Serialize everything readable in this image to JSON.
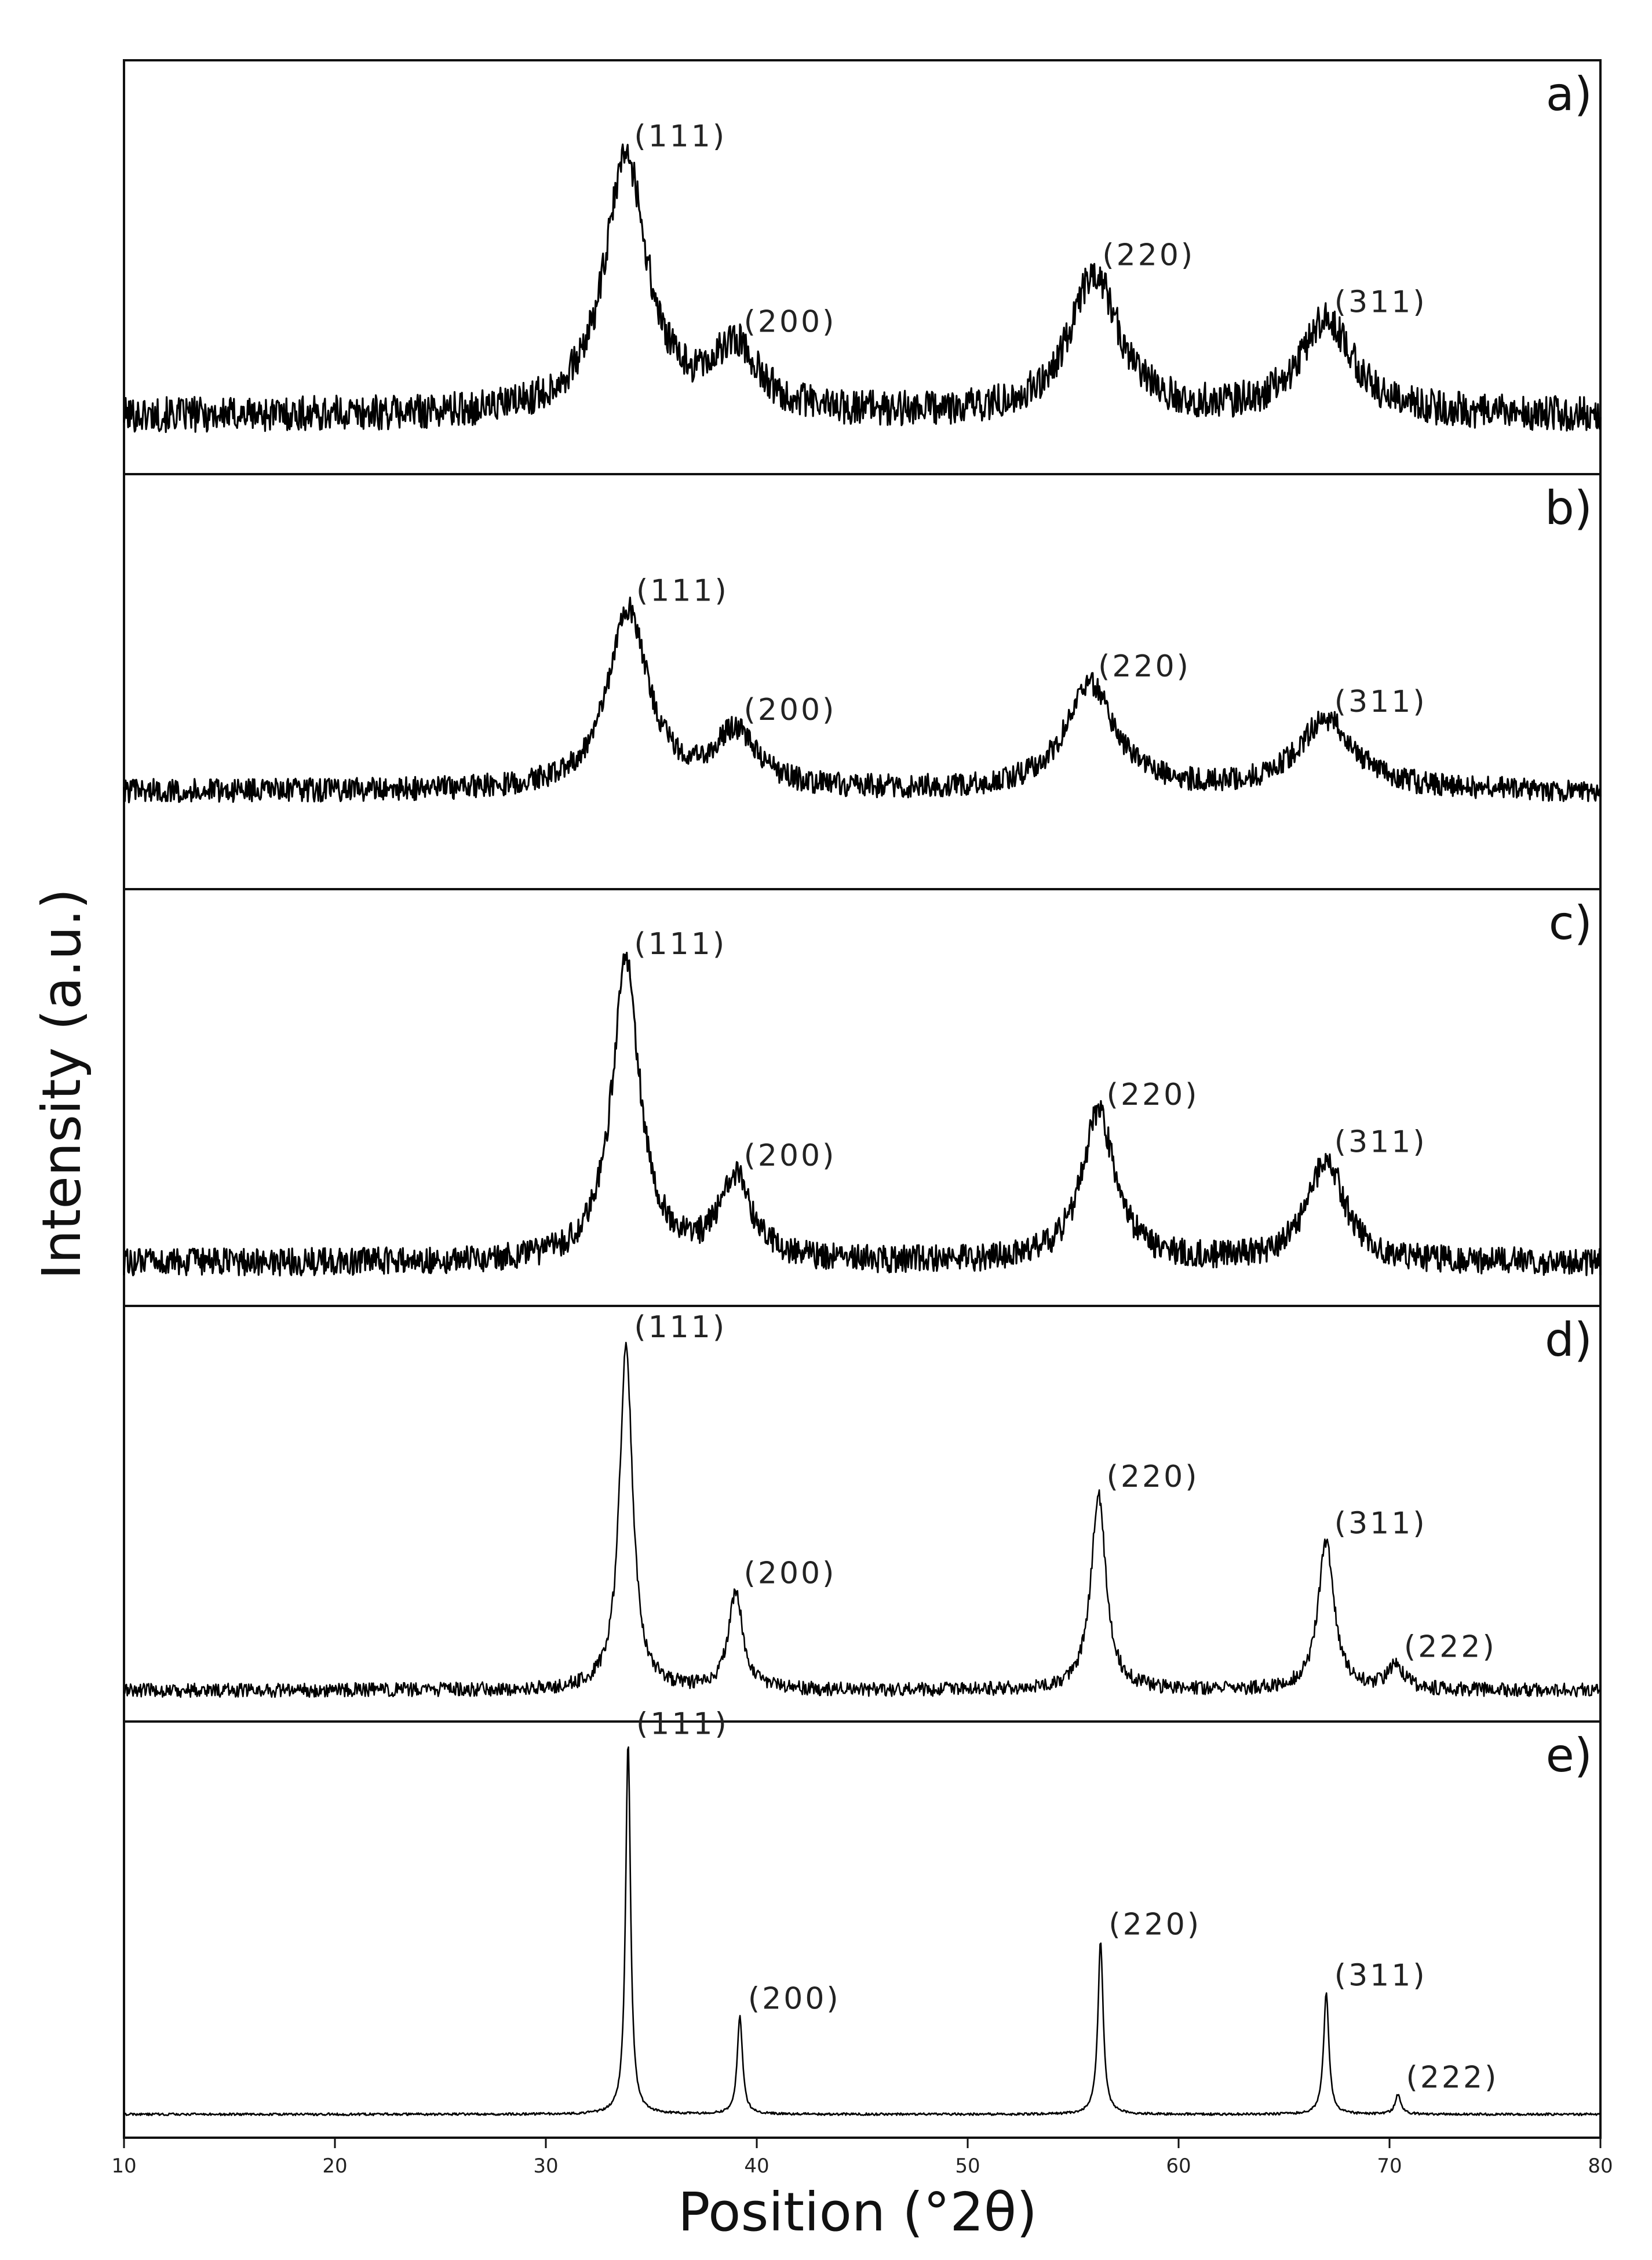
{
  "chart_data": {
    "type": "line",
    "xlabel": "Position (°2θ)",
    "ylabel": "Intensity (a.u.)",
    "xlim": [
      10,
      80
    ],
    "xticks": [
      10,
      20,
      30,
      40,
      50,
      60,
      70,
      80
    ],
    "grid": false,
    "panels": [
      {
        "id": "a",
        "letter": "a)",
        "baseline": 0.12,
        "noise": 0.045,
        "peaks": [
          {
            "hkl": "(111)",
            "center": 33.8,
            "height": 0.66,
            "width": 2.4
          },
          {
            "hkl": "(200)",
            "center": 39.0,
            "height": 0.16,
            "width": 2.6
          },
          {
            "hkl": "(220)",
            "center": 56.0,
            "height": 0.36,
            "width": 2.8
          },
          {
            "hkl": "(311)",
            "center": 67.0,
            "height": 0.24,
            "width": 3.0
          }
        ]
      },
      {
        "id": "b",
        "letter": "b)",
        "baseline": 0.22,
        "noise": 0.03,
        "peaks": [
          {
            "hkl": "(111)",
            "center": 33.9,
            "height": 0.46,
            "width": 2.3
          },
          {
            "hkl": "(200)",
            "center": 39.0,
            "height": 0.14,
            "width": 2.4
          },
          {
            "hkl": "(220)",
            "center": 55.8,
            "height": 0.27,
            "width": 2.8
          },
          {
            "hkl": "(311)",
            "center": 67.0,
            "height": 0.18,
            "width": 3.2
          }
        ]
      },
      {
        "id": "c",
        "letter": "c)",
        "baseline": 0.08,
        "noise": 0.035,
        "peaks": [
          {
            "hkl": "(111)",
            "center": 33.8,
            "height": 0.76,
            "width": 1.6
          },
          {
            "hkl": "(200)",
            "center": 39.0,
            "height": 0.21,
            "width": 1.8
          },
          {
            "hkl": "(220)",
            "center": 56.2,
            "height": 0.38,
            "width": 1.9
          },
          {
            "hkl": "(311)",
            "center": 67.0,
            "height": 0.26,
            "width": 2.1
          }
        ]
      },
      {
        "id": "d",
        "letter": "d)",
        "baseline": 0.05,
        "noise": 0.018,
        "peaks": [
          {
            "hkl": "(111)",
            "center": 33.8,
            "height": 0.88,
            "width": 0.75
          },
          {
            "hkl": "(200)",
            "center": 39.0,
            "height": 0.25,
            "width": 0.8
          },
          {
            "hkl": "(220)",
            "center": 56.2,
            "height": 0.5,
            "width": 0.85
          },
          {
            "hkl": "(311)",
            "center": 67.0,
            "height": 0.38,
            "width": 0.9
          },
          {
            "hkl": "(222)",
            "center": 70.3,
            "height": 0.06,
            "width": 0.9
          }
        ]
      },
      {
        "id": "e",
        "letter": "e)",
        "baseline": 0.03,
        "noise": 0.003,
        "peaks": [
          {
            "hkl": "(111)",
            "center": 33.9,
            "height": 0.95,
            "width": 0.28
          },
          {
            "hkl": "(200)",
            "center": 39.2,
            "height": 0.25,
            "width": 0.3
          },
          {
            "hkl": "(220)",
            "center": 56.3,
            "height": 0.44,
            "width": 0.3
          },
          {
            "hkl": "(311)",
            "center": 67.0,
            "height": 0.31,
            "width": 0.3
          },
          {
            "hkl": "(222)",
            "center": 70.4,
            "height": 0.05,
            "width": 0.32
          }
        ]
      }
    ]
  }
}
